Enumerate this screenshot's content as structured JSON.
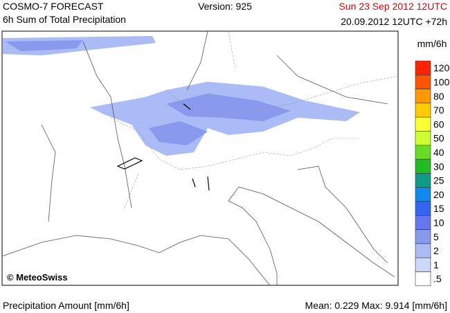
{
  "header": {
    "title": "COSMO-7 FORECAST",
    "subtitle": "6h Sum of Total Precipitation",
    "version": "Version: 925",
    "valid_time": "Sun 23 Sep 2012 12UTC",
    "run": "20.09.2012 12UTC +72h"
  },
  "map": {
    "copyright": "© MeteoSwiss"
  },
  "legend": {
    "unit": "mm/6h",
    "items": [
      {
        "label": "120",
        "color": "#ff2200"
      },
      {
        "label": "100",
        "color": "#ff5500"
      },
      {
        "label": "80",
        "color": "#ff9900"
      },
      {
        "label": "70",
        "color": "#ffcc00"
      },
      {
        "label": "60",
        "color": "#ffff33"
      },
      {
        "label": "50",
        "color": "#ccff33"
      },
      {
        "label": "40",
        "color": "#66dd22"
      },
      {
        "label": "30",
        "color": "#22bb22"
      },
      {
        "label": "25",
        "color": "#119988"
      },
      {
        "label": "20",
        "color": "#1188ee"
      },
      {
        "label": "15",
        "color": "#3366ee"
      },
      {
        "label": "10",
        "color": "#6677ee"
      },
      {
        "label": "5",
        "color": "#8899ee"
      },
      {
        "label": "2",
        "color": "#aabbf5"
      },
      {
        "label": "1",
        "color": "#ccd8fa"
      },
      {
        "label": ".5",
        "color": "#ffffff"
      }
    ]
  },
  "footer": {
    "quantity": "Precipitation Amount [mm/6h]",
    "stats": "Mean:  0.229 Max:  9.914 [mm/6h]"
  }
}
